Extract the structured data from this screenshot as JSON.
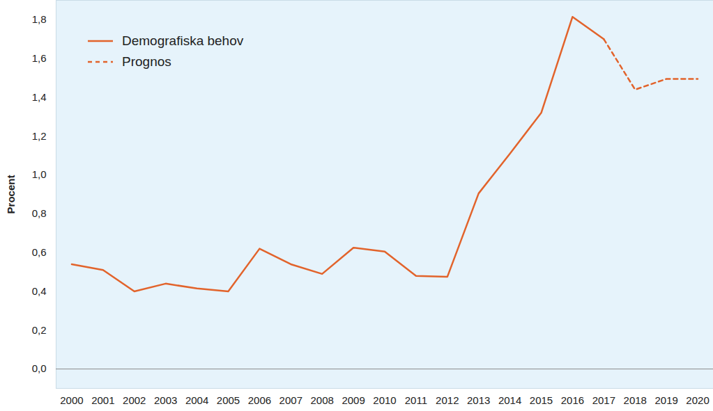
{
  "chart_data": {
    "type": "line",
    "y_label": "Procent",
    "x": [
      2000,
      2001,
      2002,
      2003,
      2004,
      2005,
      2006,
      2007,
      2008,
      2009,
      2010,
      2011,
      2012,
      2013,
      2014,
      2015,
      2016,
      2017,
      2018,
      2019,
      2020
    ],
    "series": [
      {
        "name": "Demografiska behov",
        "color": "#e2632b",
        "line_style": "solid",
        "values": [
          0.54,
          0.51,
          0.4,
          0.44,
          0.415,
          0.4,
          0.62,
          0.54,
          0.49,
          0.625,
          0.605,
          0.48,
          0.475,
          0.905,
          1.11,
          1.32,
          1.815,
          1.7,
          null,
          null,
          null
        ]
      },
      {
        "name": "Prognos",
        "color": "#e2632b",
        "line_style": "dashed",
        "values": [
          null,
          null,
          null,
          null,
          null,
          null,
          null,
          null,
          null,
          null,
          null,
          null,
          null,
          null,
          null,
          null,
          null,
          1.7,
          1.44,
          1.495,
          1.495
        ]
      }
    ],
    "xlim": [
      1999.5,
      2020.5
    ],
    "xticks": [
      2000,
      2001,
      2002,
      2003,
      2004,
      2005,
      2006,
      2007,
      2008,
      2009,
      2010,
      2011,
      2012,
      2013,
      2014,
      2015,
      2016,
      2017,
      2018,
      2019,
      2020
    ],
    "ylim": [
      -0.1,
      1.9
    ],
    "yticks": [
      {
        "value": 0,
        "label": "0,0"
      },
      {
        "value": 0.2,
        "label": "0,2"
      },
      {
        "value": 0.4,
        "label": "0,4"
      },
      {
        "value": 0.6,
        "label": "0,6"
      },
      {
        "value": 0.8,
        "label": "0,8"
      },
      {
        "value": 1.0,
        "label": "1,0"
      },
      {
        "value": 1.2,
        "label": "1,2"
      },
      {
        "value": 1.4,
        "label": "1,4"
      },
      {
        "value": 1.6,
        "label": "1,6"
      },
      {
        "value": 1.8,
        "label": "1,8"
      }
    ],
    "grid": false,
    "legend": "top-left"
  }
}
